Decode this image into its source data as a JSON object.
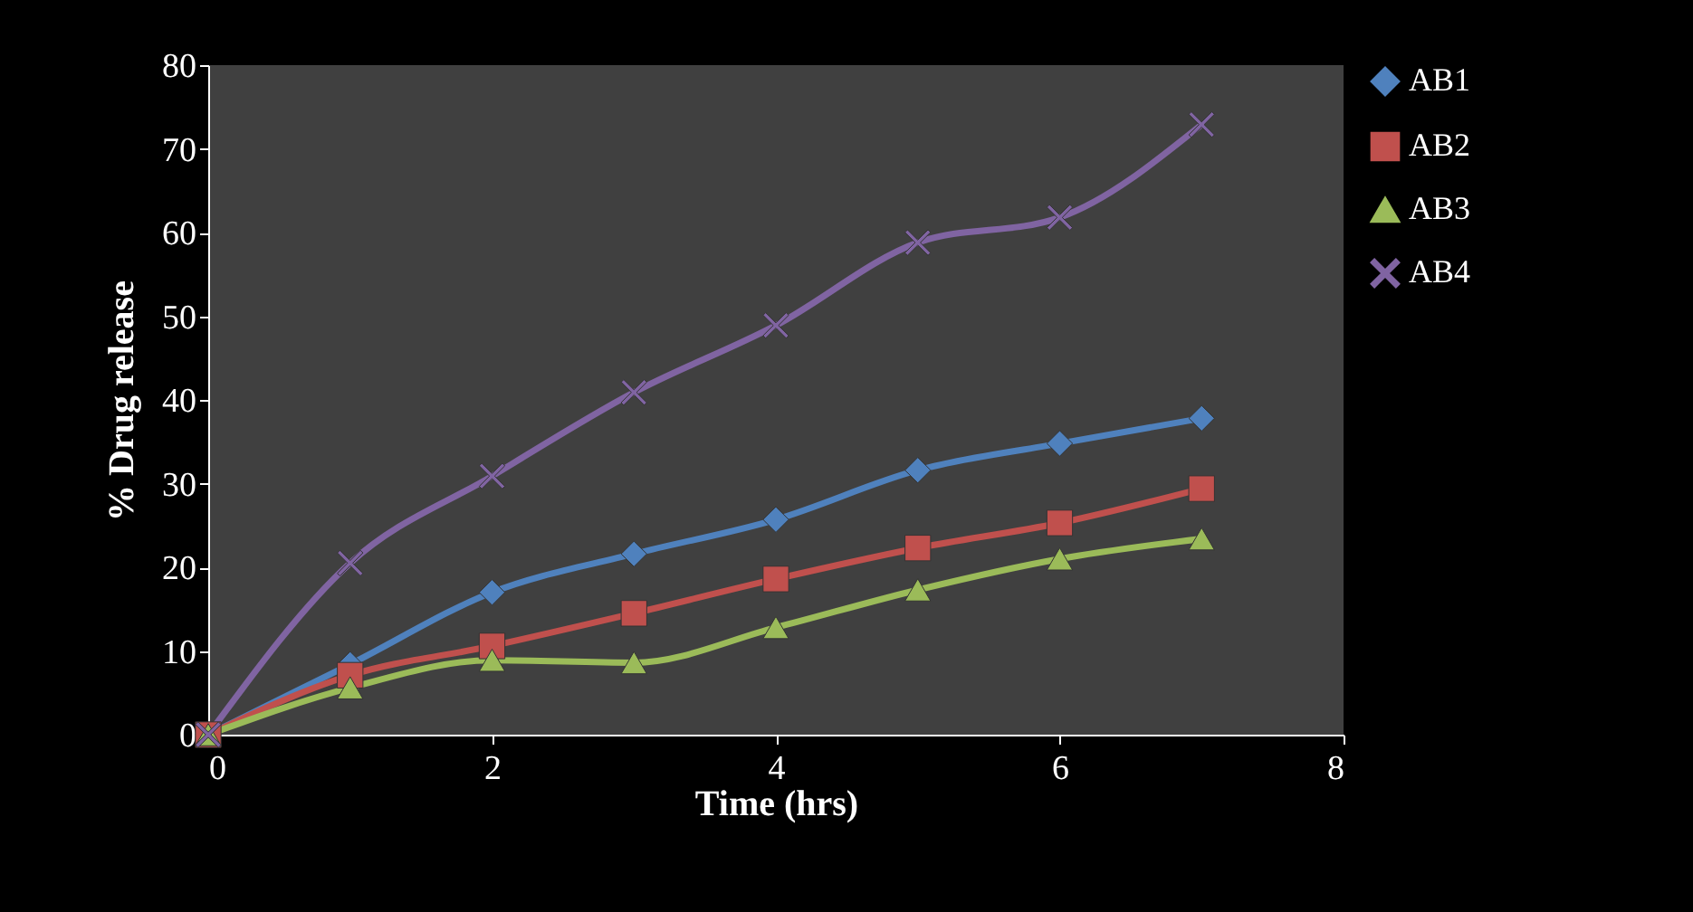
{
  "chart_data": {
    "type": "line",
    "xlabel": "Time (hrs)",
    "ylabel": "% Drug release",
    "x": [
      0,
      1,
      2,
      3,
      4,
      5,
      6,
      7
    ],
    "xlim": [
      0,
      8
    ],
    "xticks": [
      0,
      2,
      4,
      6,
      8
    ],
    "ylim": [
      0,
      80
    ],
    "yticks": [
      0,
      10,
      20,
      30,
      40,
      50,
      60,
      70,
      80
    ],
    "grid": false,
    "legend": "right",
    "line_style": "solid",
    "series": [
      {
        "name": "AB1",
        "color": "#4f81bd",
        "marker": "diamond",
        "values": [
          0,
          8.4,
          17,
          21.6,
          25.7,
          31.6,
          34.8,
          37.8
        ]
      },
      {
        "name": "AB2",
        "color": "#c0504d",
        "marker": "square",
        "values": [
          0,
          7.1,
          10.6,
          14.5,
          18.6,
          22.3,
          25.3,
          29.4
        ]
      },
      {
        "name": "AB3",
        "color": "#9bbb59",
        "marker": "triangle",
        "values": [
          0,
          5.6,
          8.9,
          8.6,
          12.8,
          17.3,
          21,
          23.4
        ]
      },
      {
        "name": "AB4",
        "color": "#8064a2",
        "marker": "cross",
        "values": [
          0,
          20.5,
          30.9,
          40.9,
          48.9,
          58.8,
          61.8,
          72.9
        ]
      }
    ]
  }
}
